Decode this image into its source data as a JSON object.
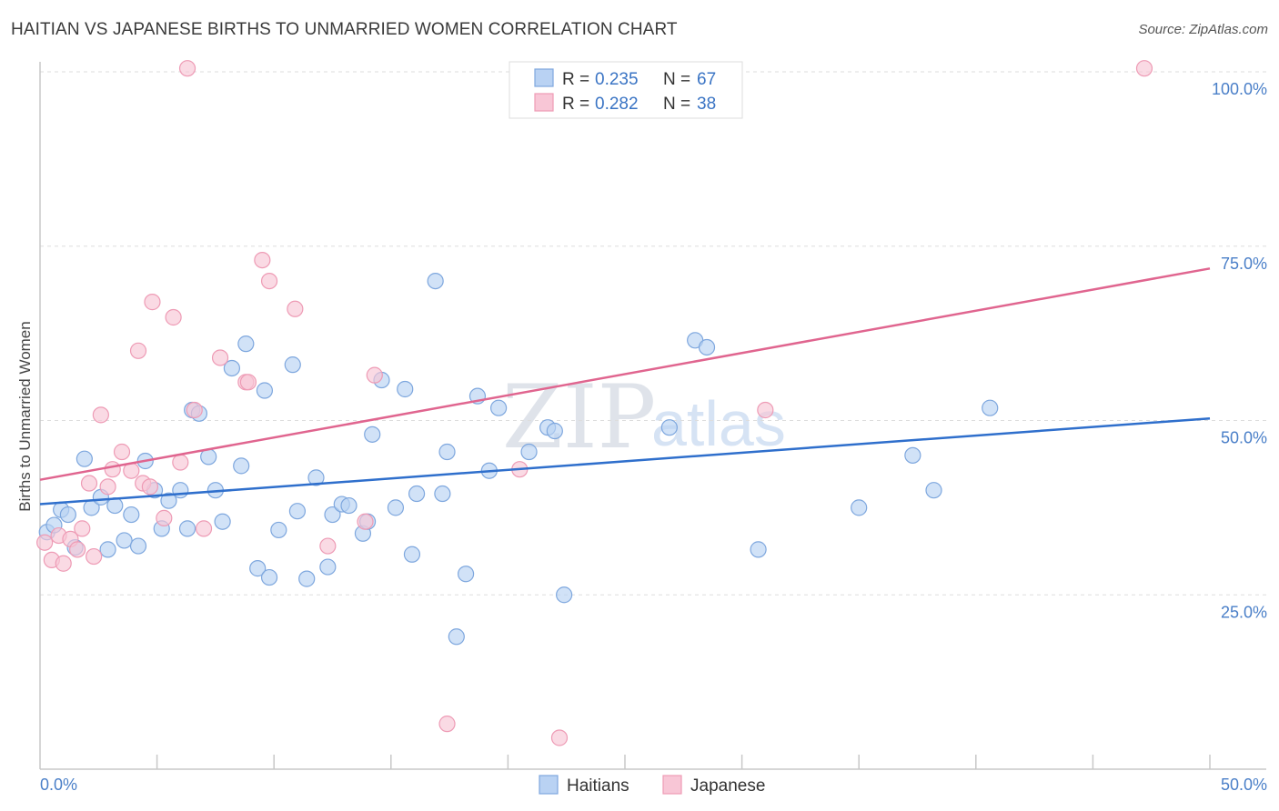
{
  "title": "HAITIAN VS JAPANESE BIRTHS TO UNMARRIED WOMEN CORRELATION CHART",
  "source": "Source: ZipAtlas.com",
  "watermark": {
    "zip": "ZIP",
    "atlas": "atlas"
  },
  "legend": {
    "r_label": "R =",
    "n_label": "N =",
    "haitians": {
      "r": "0.235",
      "n": "67"
    },
    "japanese": {
      "r": "0.282",
      "n": "38"
    }
  },
  "bottom_legend": {
    "haitians": "Haitians",
    "japanese": "Japanese"
  },
  "chart_data": {
    "type": "scatter",
    "title": "HAITIAN VS JAPANESE BIRTHS TO UNMARRIED WOMEN CORRELATION CHART",
    "xlabel": "",
    "ylabel": "Births to Unmarried Women",
    "xlim": [
      0,
      50
    ],
    "ylim": [
      0,
      105
    ],
    "x_tick_labels": {
      "left": "0.0%",
      "right": "50.0%"
    },
    "y_ticks": [
      {
        "value": 25,
        "label": "25.0%"
      },
      {
        "value": 50,
        "label": "50.0%"
      },
      {
        "value": 75,
        "label": "75.0%"
      },
      {
        "value": 100,
        "label": "100.0%"
      }
    ],
    "colors": {
      "haitians_fill": "#b9d2f3",
      "haitians_stroke": "#7ea7de",
      "haitians_line": "#2f6fcc",
      "japanese_fill": "#f8c6d6",
      "japanese_stroke": "#ee9bb5",
      "japanese_line": "#e0658f"
    },
    "series": [
      {
        "name": "Haitians",
        "trend": {
          "x": [
            0,
            50
          ],
          "y": [
            38.0,
            50.3
          ]
        },
        "points": [
          [
            0.3,
            34.0
          ],
          [
            0.6,
            35.0
          ],
          [
            0.9,
            37.2
          ],
          [
            1.2,
            36.5
          ],
          [
            1.5,
            31.8
          ],
          [
            1.9,
            44.5
          ],
          [
            2.2,
            37.5
          ],
          [
            2.6,
            39.0
          ],
          [
            2.9,
            31.5
          ],
          [
            3.2,
            37.8
          ],
          [
            3.6,
            32.8
          ],
          [
            3.9,
            36.5
          ],
          [
            4.2,
            32.0
          ],
          [
            4.5,
            44.2
          ],
          [
            4.9,
            40.0
          ],
          [
            5.2,
            34.5
          ],
          [
            5.5,
            38.5
          ],
          [
            6.0,
            40.0
          ],
          [
            6.3,
            34.5
          ],
          [
            6.5,
            51.5
          ],
          [
            6.8,
            51.0
          ],
          [
            7.2,
            44.8
          ],
          [
            7.5,
            40.0
          ],
          [
            7.8,
            35.5
          ],
          [
            8.2,
            57.5
          ],
          [
            8.6,
            43.5
          ],
          [
            8.8,
            61.0
          ],
          [
            9.3,
            28.8
          ],
          [
            9.6,
            54.3
          ],
          [
            9.8,
            27.5
          ],
          [
            10.2,
            34.3
          ],
          [
            10.8,
            58.0
          ],
          [
            11.0,
            37.0
          ],
          [
            11.4,
            27.3
          ],
          [
            11.8,
            41.8
          ],
          [
            12.3,
            29.0
          ],
          [
            12.5,
            36.5
          ],
          [
            12.9,
            38.0
          ],
          [
            13.2,
            37.8
          ],
          [
            13.8,
            33.8
          ],
          [
            14.0,
            35.5
          ],
          [
            14.2,
            48.0
          ],
          [
            14.6,
            55.8
          ],
          [
            15.2,
            37.5
          ],
          [
            15.6,
            54.5
          ],
          [
            15.9,
            30.8
          ],
          [
            16.1,
            39.5
          ],
          [
            16.9,
            70.0
          ],
          [
            17.2,
            39.5
          ],
          [
            17.4,
            45.5
          ],
          [
            17.8,
            19.0
          ],
          [
            18.2,
            28.0
          ],
          [
            18.7,
            53.5
          ],
          [
            19.2,
            42.8
          ],
          [
            19.6,
            51.8
          ],
          [
            20.9,
            45.5
          ],
          [
            21.7,
            49.0
          ],
          [
            22.0,
            48.5
          ],
          [
            22.4,
            25.0
          ],
          [
            26.9,
            49.0
          ],
          [
            28.0,
            61.5
          ],
          [
            28.5,
            60.5
          ],
          [
            30.7,
            31.5
          ],
          [
            35.0,
            37.5
          ],
          [
            37.3,
            45.0
          ],
          [
            38.2,
            40.0
          ],
          [
            40.6,
            51.8
          ]
        ]
      },
      {
        "name": "Japanese",
        "trend": {
          "x": [
            0,
            50
          ],
          "y": [
            41.5,
            71.8
          ]
        },
        "points": [
          [
            0.2,
            32.5
          ],
          [
            0.5,
            30.0
          ],
          [
            0.8,
            33.5
          ],
          [
            1.0,
            29.5
          ],
          [
            1.3,
            33.0
          ],
          [
            1.6,
            31.5
          ],
          [
            1.8,
            34.5
          ],
          [
            2.3,
            30.5
          ],
          [
            2.1,
            41.0
          ],
          [
            2.6,
            50.8
          ],
          [
            2.9,
            40.5
          ],
          [
            3.1,
            43.0
          ],
          [
            3.5,
            45.5
          ],
          [
            3.9,
            42.8
          ],
          [
            4.2,
            60.0
          ],
          [
            4.4,
            41.0
          ],
          [
            4.7,
            40.5
          ],
          [
            4.8,
            67.0
          ],
          [
            5.3,
            36.0
          ],
          [
            5.7,
            64.8
          ],
          [
            6.0,
            44.0
          ],
          [
            6.3,
            100.5
          ],
          [
            6.6,
            51.5
          ],
          [
            7.0,
            34.5
          ],
          [
            7.7,
            59.0
          ],
          [
            8.8,
            55.5
          ],
          [
            8.9,
            55.5
          ],
          [
            9.5,
            73.0
          ],
          [
            9.8,
            70.0
          ],
          [
            10.9,
            66.0
          ],
          [
            12.3,
            32.0
          ],
          [
            13.9,
            35.5
          ],
          [
            14.3,
            56.5
          ],
          [
            17.4,
            6.5
          ],
          [
            20.5,
            43.0
          ],
          [
            22.2,
            4.5
          ],
          [
            31.0,
            51.5
          ],
          [
            47.2,
            100.5
          ]
        ]
      }
    ]
  }
}
